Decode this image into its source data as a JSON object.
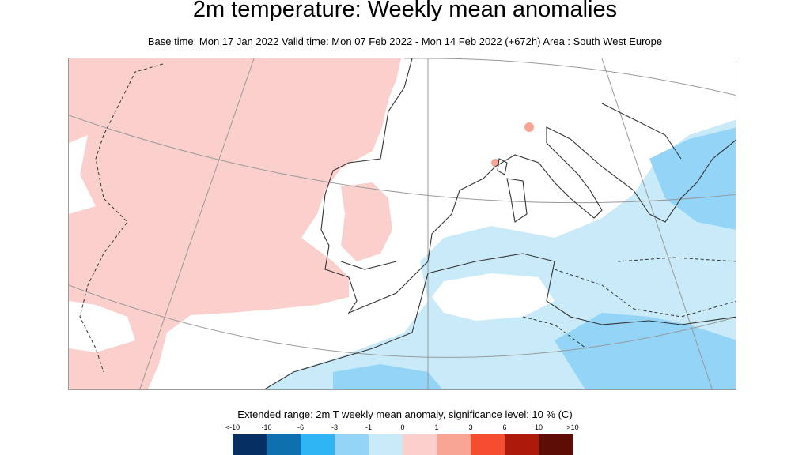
{
  "title": "2m temperature: Weekly mean anomalies",
  "subtitle": "Base time: Mon 17 Jan 2022 Valid time: Mon 07 Feb 2022 - Mon 14 Feb 2022 (+672h) Area : South West Europe",
  "legend": {
    "title": "Extended range: 2m T weekly mean anomaly, significance level: 10 % (C)",
    "labels": [
      "<-10",
      "-10",
      "-6",
      "-3",
      "-1",
      "0",
      "1",
      "3",
      "6",
      "10",
      ">10"
    ],
    "colors": [
      "#053061",
      "#0f70b0",
      "#2fb4f4",
      "#93d4f7",
      "#c9eaf9",
      "#fbd0cc",
      "#f9a596",
      "#f64d30",
      "#ad1a0c",
      "#5e0d05"
    ]
  },
  "map": {
    "area": "South West Europe",
    "colors": {
      "warm_light": "#fbd0cc",
      "cold_light": "#c9eaf9",
      "cold_medium": "#93d4f7",
      "warm_medium": "#f9a596"
    }
  }
}
